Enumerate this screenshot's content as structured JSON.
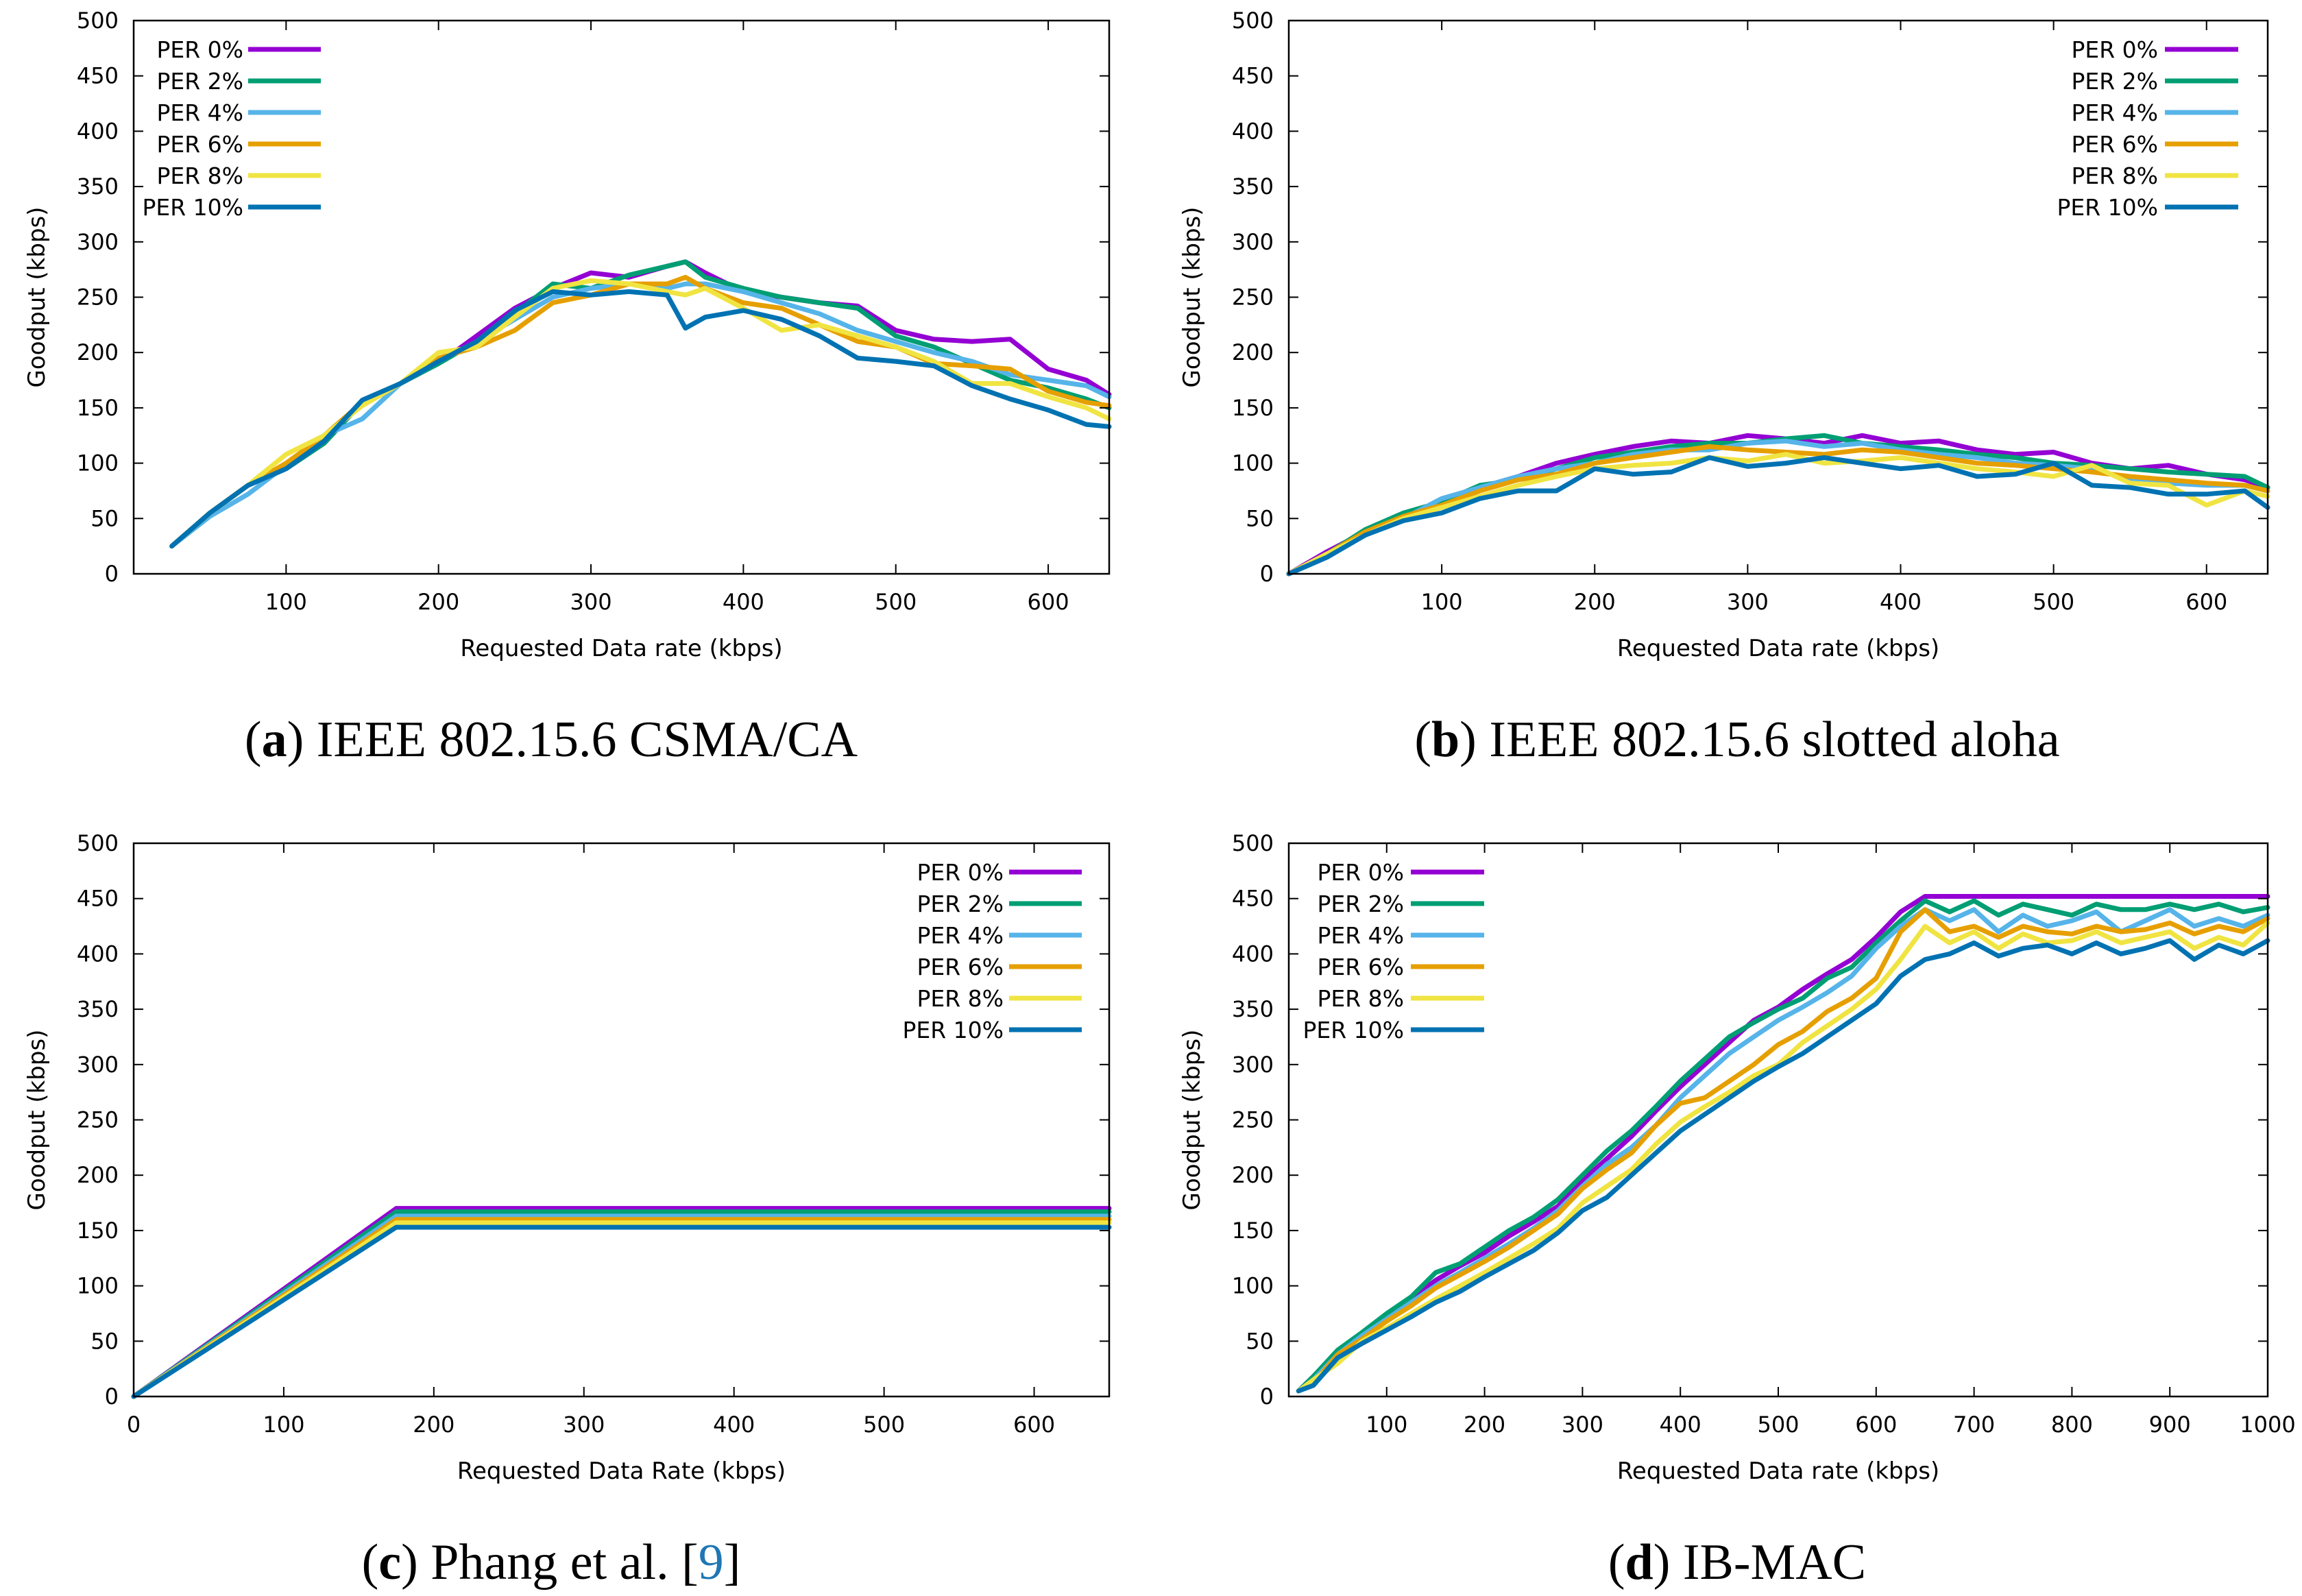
{
  "colors": {
    "PER 0%": "#9400d3",
    "PER 2%": "#009e73",
    "PER 4%": "#56b4e9",
    "PER 6%": "#e69f00",
    "PER 8%": "#f0e442",
    "PER 10%": "#0072b2"
  },
  "panels": [
    {
      "caption": {
        "open": "(",
        "letter": "a",
        "close": ") IEEE 802.15.6 CSMA/CA"
      }
    },
    {
      "caption": {
        "open": "(",
        "letter": "b",
        "close": ") IEEE 802.15.6 slotted aloha"
      }
    },
    {
      "caption": {
        "open": "(",
        "letter": "c",
        "close": ") Phang et al. [",
        "cite": "9",
        "end": "]"
      }
    },
    {
      "caption": {
        "open": "(",
        "letter": "d",
        "close": ") IB-MAC"
      }
    }
  ],
  "chart_data": [
    {
      "type": "line",
      "xlabel": "Requested Data rate (kbps)",
      "ylabel": "Goodput (kbps)",
      "xlim": [
        0,
        640
      ],
      "ylim": [
        0,
        500
      ],
      "xticks": [
        100,
        200,
        300,
        400,
        500,
        600
      ],
      "yticks": [
        0,
        50,
        100,
        150,
        200,
        250,
        300,
        350,
        400,
        450,
        500
      ],
      "legend": "top-left",
      "grid": false,
      "x": [
        25,
        50,
        75,
        100,
        125,
        150,
        175,
        200,
        225,
        250,
        275,
        300,
        325,
        350,
        362,
        375,
        400,
        425,
        450,
        475,
        500,
        525,
        550,
        575,
        600,
        625,
        640
      ],
      "series": [
        {
          "name": "PER 0%",
          "values": [
            25,
            55,
            80,
            95,
            118,
            155,
            172,
            190,
            215,
            240,
            258,
            272,
            268,
            278,
            282,
            272,
            255,
            250,
            245,
            242,
            220,
            212,
            210,
            212,
            185,
            175,
            162
          ]
        },
        {
          "name": "PER 2%",
          "values": [
            25,
            55,
            80,
            95,
            118,
            155,
            172,
            190,
            210,
            235,
            262,
            258,
            270,
            278,
            282,
            268,
            258,
            250,
            245,
            240,
            215,
            205,
            190,
            175,
            168,
            158,
            150
          ]
        },
        {
          "name": "PER 4%",
          "values": [
            25,
            52,
            72,
            98,
            125,
            140,
            172,
            192,
            210,
            230,
            250,
            258,
            262,
            258,
            262,
            262,
            255,
            245,
            235,
            220,
            210,
            200,
            192,
            180,
            175,
            170,
            160
          ]
        },
        {
          "name": "PER 6%",
          "values": [
            25,
            55,
            80,
            100,
            125,
            155,
            172,
            195,
            205,
            220,
            245,
            252,
            262,
            262,
            268,
            258,
            245,
            240,
            225,
            210,
            205,
            190,
            188,
            185,
            165,
            155,
            152
          ]
        },
        {
          "name": "PER 8%",
          "values": [
            25,
            55,
            80,
            108,
            125,
            152,
            172,
            200,
            205,
            232,
            258,
            265,
            262,
            255,
            252,
            258,
            240,
            220,
            225,
            215,
            205,
            192,
            172,
            172,
            160,
            150,
            140
          ]
        },
        {
          "name": "PER 10%",
          "values": [
            25,
            55,
            80,
            95,
            120,
            157,
            172,
            192,
            210,
            238,
            255,
            252,
            255,
            252,
            222,
            232,
            238,
            230,
            215,
            195,
            192,
            188,
            170,
            158,
            148,
            135,
            133
          ]
        }
      ]
    },
    {
      "type": "line",
      "xlabel": "Requested Data rate (kbps)",
      "ylabel": "Goodput (kbps)",
      "xlim": [
        0,
        640
      ],
      "ylim": [
        0,
        500
      ],
      "xticks": [
        100,
        200,
        300,
        400,
        500,
        600
      ],
      "yticks": [
        0,
        50,
        100,
        150,
        200,
        250,
        300,
        350,
        400,
        450,
        500
      ],
      "legend": "top-right",
      "grid": false,
      "x": [
        0,
        25,
        50,
        75,
        100,
        125,
        150,
        175,
        200,
        225,
        250,
        275,
        300,
        325,
        350,
        375,
        400,
        425,
        450,
        475,
        500,
        525,
        550,
        575,
        600,
        625,
        640
      ],
      "series": [
        {
          "name": "PER 0%",
          "values": [
            0,
            20,
            38,
            52,
            62,
            78,
            88,
            100,
            108,
            115,
            120,
            118,
            125,
            122,
            118,
            125,
            118,
            120,
            112,
            108,
            110,
            100,
            95,
            98,
            90,
            85,
            78
          ]
        },
        {
          "name": "PER 2%",
          "values": [
            0,
            18,
            40,
            55,
            65,
            80,
            85,
            95,
            105,
            110,
            115,
            118,
            118,
            122,
            125,
            118,
            115,
            112,
            108,
            105,
            100,
            98,
            95,
            92,
            90,
            88,
            78
          ]
        },
        {
          "name": "PER 4%",
          "values": [
            0,
            18,
            35,
            50,
            68,
            78,
            88,
            95,
            100,
            108,
            112,
            112,
            118,
            120,
            115,
            118,
            112,
            108,
            105,
            100,
            98,
            95,
            85,
            82,
            80,
            80,
            75
          ]
        },
        {
          "name": "PER 6%",
          "values": [
            0,
            18,
            38,
            52,
            62,
            75,
            85,
            90,
            100,
            105,
            110,
            115,
            112,
            110,
            108,
            112,
            110,
            105,
            100,
            98,
            95,
            92,
            88,
            85,
            82,
            80,
            75
          ]
        },
        {
          "name": "PER 8%",
          "values": [
            0,
            18,
            35,
            50,
            60,
            70,
            80,
            88,
            95,
            98,
            100,
            105,
            102,
            108,
            100,
            102,
            105,
            100,
            95,
            92,
            88,
            98,
            82,
            80,
            62,
            75,
            70
          ]
        },
        {
          "name": "PER 10%",
          "values": [
            0,
            15,
            35,
            48,
            55,
            68,
            75,
            75,
            95,
            90,
            92,
            105,
            97,
            100,
            105,
            100,
            95,
            98,
            88,
            90,
            100,
            80,
            78,
            72,
            72,
            75,
            60
          ]
        }
      ]
    },
    {
      "type": "line",
      "xlabel": "Requested Data Rate (kbps)",
      "ylabel": "Goodput (kbps)",
      "xlim": [
        0,
        650
      ],
      "ylim": [
        0,
        500
      ],
      "xticks": [
        0,
        100,
        200,
        300,
        400,
        500,
        600
      ],
      "yticks": [
        0,
        50,
        100,
        150,
        200,
        250,
        300,
        350,
        400,
        450,
        500
      ],
      "legend": "top-right",
      "grid": false,
      "x": [
        0,
        175,
        650
      ],
      "series": [
        {
          "name": "PER 0%",
          "values": [
            0,
            170,
            170
          ]
        },
        {
          "name": "PER 2%",
          "values": [
            0,
            167,
            167
          ]
        },
        {
          "name": "PER 4%",
          "values": [
            0,
            163,
            163
          ]
        },
        {
          "name": "PER 6%",
          "values": [
            0,
            160,
            160
          ]
        },
        {
          "name": "PER 8%",
          "values": [
            0,
            157,
            157
          ]
        },
        {
          "name": "PER 10%",
          "values": [
            0,
            153,
            153
          ]
        }
      ]
    },
    {
      "type": "line",
      "xlabel": "Requested Data rate (kbps)",
      "ylabel": "Goodput (kbps)",
      "xlim": [
        0,
        1000
      ],
      "ylim": [
        0,
        500
      ],
      "xticks": [
        100,
        200,
        300,
        400,
        500,
        600,
        700,
        800,
        900,
        1000
      ],
      "yticks": [
        0,
        50,
        100,
        150,
        200,
        250,
        300,
        350,
        400,
        450,
        500
      ],
      "legend": "top-left",
      "grid": false,
      "x": [
        10,
        25,
        50,
        75,
        100,
        125,
        150,
        175,
        200,
        225,
        250,
        275,
        300,
        325,
        350,
        375,
        400,
        425,
        450,
        475,
        500,
        525,
        550,
        575,
        600,
        625,
        650,
        675,
        700,
        725,
        750,
        775,
        800,
        825,
        850,
        875,
        900,
        925,
        950,
        975,
        1000
      ],
      "series": [
        {
          "name": "PER 0%",
          "values": [
            5,
            18,
            40,
            55,
            72,
            88,
            105,
            118,
            130,
            145,
            158,
            172,
            195,
            215,
            235,
            258,
            280,
            300,
            320,
            340,
            352,
            368,
            382,
            395,
            415,
            438,
            452,
            452,
            452,
            452,
            452,
            452,
            452,
            452,
            452,
            452,
            452,
            452,
            452,
            452,
            452
          ]
        },
        {
          "name": "PER 2%",
          "values": [
            5,
            18,
            42,
            58,
            75,
            90,
            112,
            120,
            135,
            150,
            162,
            178,
            200,
            222,
            240,
            262,
            285,
            305,
            325,
            338,
            350,
            360,
            378,
            388,
            410,
            430,
            448,
            438,
            448,
            435,
            445,
            440,
            435,
            445,
            440,
            440,
            445,
            440,
            445,
            438,
            442
          ]
        },
        {
          "name": "PER 4%",
          "values": [
            5,
            15,
            38,
            55,
            70,
            85,
            100,
            112,
            125,
            138,
            152,
            168,
            190,
            210,
            225,
            245,
            270,
            290,
            310,
            325,
            340,
            352,
            365,
            380,
            405,
            425,
            440,
            430,
            440,
            420,
            435,
            425,
            430,
            438,
            420,
            430,
            440,
            425,
            432,
            425,
            435
          ]
        },
        {
          "name": "PER 6%",
          "values": [
            5,
            12,
            38,
            52,
            68,
            82,
            98,
            110,
            122,
            135,
            150,
            165,
            188,
            205,
            220,
            245,
            265,
            270,
            285,
            300,
            318,
            330,
            348,
            360,
            378,
            420,
            440,
            420,
            425,
            415,
            425,
            420,
            418,
            425,
            420,
            422,
            428,
            418,
            425,
            420,
            432
          ]
        },
        {
          "name": "PER 8%",
          "values": [
            5,
            15,
            30,
            50,
            62,
            75,
            88,
            100,
            112,
            125,
            138,
            152,
            175,
            190,
            205,
            228,
            248,
            262,
            275,
            290,
            300,
            320,
            335,
            350,
            368,
            395,
            425,
            410,
            420,
            405,
            418,
            410,
            412,
            420,
            410,
            415,
            420,
            405,
            415,
            408,
            428
          ]
        },
        {
          "name": "PER 10%",
          "values": [
            5,
            10,
            35,
            48,
            60,
            72,
            85,
            95,
            108,
            120,
            132,
            148,
            168,
            180,
            200,
            220,
            240,
            255,
            270,
            285,
            298,
            310,
            325,
            340,
            355,
            380,
            395,
            400,
            410,
            398,
            405,
            408,
            400,
            410,
            400,
            405,
            412,
            395,
            408,
            400,
            412
          ]
        }
      ]
    }
  ]
}
